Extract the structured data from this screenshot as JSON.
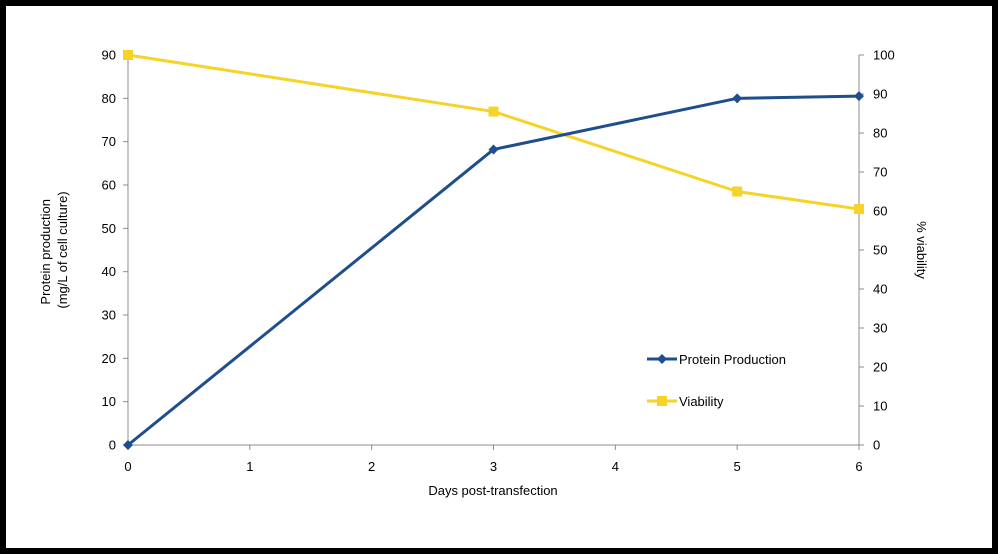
{
  "chart_data": {
    "type": "line",
    "title": "",
    "xlabel": "Days post-transfection",
    "ylabel_left": [
      "Protein production",
      "(mg/L of cell culture)"
    ],
    "ylabel_right": "% viability",
    "xlim": [
      0,
      6
    ],
    "ylim_left": [
      0,
      90
    ],
    "ylim_right": [
      0,
      100
    ],
    "x_ticks": [
      "0",
      "1",
      "2",
      "3",
      "4",
      "5",
      "6"
    ],
    "y_left_ticks": [
      "0",
      "10",
      "20",
      "30",
      "40",
      "50",
      "60",
      "70",
      "80",
      "90"
    ],
    "y_right_ticks": [
      "0",
      "10",
      "20",
      "30",
      "40",
      "50",
      "60",
      "70",
      "80",
      "90",
      "100"
    ],
    "grid": false,
    "legend_position": "right-center",
    "series": [
      {
        "name": "Protein Production",
        "axis": "left",
        "color": "#1F4E8C",
        "marker": "diamond",
        "x": [
          0,
          3,
          5,
          6
        ],
        "values": [
          0,
          68.2,
          80,
          80.5
        ]
      },
      {
        "name": "Viability",
        "axis": "right",
        "color": "#F5D327",
        "marker": "square",
        "x": [
          0,
          3,
          5,
          6
        ],
        "values": [
          100,
          85.5,
          65,
          60.5
        ]
      }
    ]
  }
}
